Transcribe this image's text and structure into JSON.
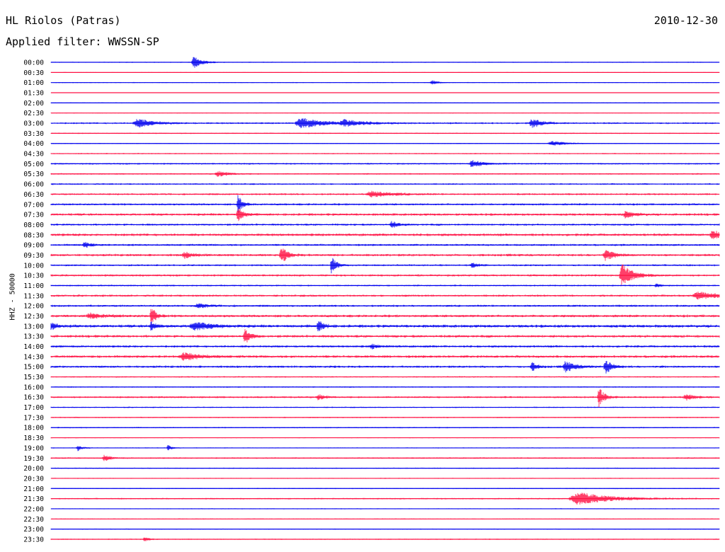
{
  "header": {
    "station": "HL Riolos (Patras)",
    "date": "2010-12-30",
    "filter": "Applied filter: WWSSN-SP"
  },
  "chart_data": {
    "type": "line",
    "title": "HL Riolos (Patras)",
    "subtitle": "Applied filter: WWSSN-SP",
    "date": "2010-12-30",
    "ylabel": "HHZ - 50000",
    "xlabel": "",
    "row_labels": [
      "00:00",
      "00:30",
      "01:00",
      "01:30",
      "02:00",
      "02:30",
      "03:00",
      "03:30",
      "04:00",
      "04:30",
      "05:00",
      "05:30",
      "06:00",
      "06:30",
      "07:00",
      "07:30",
      "08:00",
      "08:30",
      "09:00",
      "09:30",
      "10:00",
      "10:30",
      "11:00",
      "11:30",
      "12:00",
      "12:30",
      "13:00",
      "13:30",
      "14:00",
      "14:30",
      "15:00",
      "15:30",
      "16:00",
      "16:30",
      "17:00",
      "17:30",
      "18:00",
      "18:30",
      "19:00",
      "19:30",
      "20:00",
      "20:30",
      "21:00",
      "21:30",
      "22:00",
      "22:30",
      "23:00",
      "23:30"
    ],
    "row_noise": [
      0.6,
      0.5,
      0.6,
      0.4,
      0.6,
      0.5,
      1.1,
      0.8,
      0.6,
      0.8,
      1.0,
      0.9,
      1.0,
      1.2,
      1.3,
      1.5,
      1.3,
      1.6,
      1.3,
      1.5,
      1.2,
      1.3,
      1.0,
      1.3,
      1.3,
      1.6,
      1.8,
      1.6,
      1.4,
      1.6,
      1.4,
      0.9,
      0.8,
      1.2,
      0.8,
      0.8,
      0.8,
      0.6,
      0.6,
      0.9,
      0.7,
      0.6,
      0.7,
      0.9,
      0.6,
      0.6,
      0.6,
      0.7
    ],
    "events": [
      {
        "row": 0,
        "x": 0.214,
        "amp": 8,
        "dur": 0.008
      },
      {
        "row": 2,
        "x": 0.57,
        "amp": 3,
        "dur": 0.006
      },
      {
        "row": 6,
        "x": 0.13,
        "amp": 6,
        "dur": 0.015
      },
      {
        "row": 6,
        "x": 0.375,
        "amp": 7,
        "dur": 0.02
      },
      {
        "row": 6,
        "x": 0.44,
        "amp": 4,
        "dur": 0.02
      },
      {
        "row": 6,
        "x": 0.72,
        "amp": 6,
        "dur": 0.01
      },
      {
        "row": 8,
        "x": 0.75,
        "amp": 3,
        "dur": 0.015
      },
      {
        "row": 10,
        "x": 0.63,
        "amp": 5,
        "dur": 0.01
      },
      {
        "row": 11,
        "x": 0.25,
        "amp": 4,
        "dur": 0.01
      },
      {
        "row": 13,
        "x": 0.48,
        "amp": 4,
        "dur": 0.02
      },
      {
        "row": 14,
        "x": 0.28,
        "amp": 14,
        "dur": 0.004
      },
      {
        "row": 15,
        "x": 0.28,
        "amp": 10,
        "dur": 0.005
      },
      {
        "row": 15,
        "x": 0.86,
        "amp": 5,
        "dur": 0.008
      },
      {
        "row": 16,
        "x": 0.51,
        "amp": 4,
        "dur": 0.006
      },
      {
        "row": 17,
        "x": 0.99,
        "amp": 6,
        "dur": 0.008
      },
      {
        "row": 18,
        "x": 0.05,
        "amp": 4,
        "dur": 0.006
      },
      {
        "row": 19,
        "x": 0.345,
        "amp": 11,
        "dur": 0.006
      },
      {
        "row": 19,
        "x": 0.83,
        "amp": 7,
        "dur": 0.008
      },
      {
        "row": 19,
        "x": 0.2,
        "amp": 4,
        "dur": 0.008
      },
      {
        "row": 20,
        "x": 0.42,
        "amp": 12,
        "dur": 0.005
      },
      {
        "row": 20,
        "x": 0.63,
        "amp": 3,
        "dur": 0.006
      },
      {
        "row": 21,
        "x": 0.855,
        "amp": 16,
        "dur": 0.01
      },
      {
        "row": 22,
        "x": 0.905,
        "amp": 3,
        "dur": 0.004
      },
      {
        "row": 23,
        "x": 0.97,
        "amp": 5,
        "dur": 0.02
      },
      {
        "row": 24,
        "x": 0.22,
        "amp": 3,
        "dur": 0.01
      },
      {
        "row": 25,
        "x": 0.15,
        "amp": 15,
        "dur": 0.004
      },
      {
        "row": 25,
        "x": 0.06,
        "amp": 3,
        "dur": 0.015
      },
      {
        "row": 26,
        "x": 0.0,
        "amp": 5,
        "dur": 0.005
      },
      {
        "row": 26,
        "x": 0.15,
        "amp": 6,
        "dur": 0.005
      },
      {
        "row": 26,
        "x": 0.215,
        "amp": 6,
        "dur": 0.015
      },
      {
        "row": 26,
        "x": 0.4,
        "amp": 8,
        "dur": 0.005
      },
      {
        "row": 27,
        "x": 0.29,
        "amp": 11,
        "dur": 0.005
      },
      {
        "row": 28,
        "x": 0.48,
        "amp": 3,
        "dur": 0.006
      },
      {
        "row": 29,
        "x": 0.2,
        "amp": 5,
        "dur": 0.015
      },
      {
        "row": 30,
        "x": 0.72,
        "amp": 6,
        "dur": 0.005
      },
      {
        "row": 30,
        "x": 0.77,
        "amp": 7,
        "dur": 0.01
      },
      {
        "row": 30,
        "x": 0.83,
        "amp": 10,
        "dur": 0.006
      },
      {
        "row": 33,
        "x": 0.4,
        "amp": 4,
        "dur": 0.006
      },
      {
        "row": 33,
        "x": 0.82,
        "amp": 14,
        "dur": 0.005
      },
      {
        "row": 33,
        "x": 0.95,
        "amp": 4,
        "dur": 0.008
      },
      {
        "row": 38,
        "x": 0.04,
        "amp": 4,
        "dur": 0.005
      },
      {
        "row": 38,
        "x": 0.175,
        "amp": 4,
        "dur": 0.004
      },
      {
        "row": 39,
        "x": 0.08,
        "amp": 4,
        "dur": 0.006
      },
      {
        "row": 43,
        "x": 0.79,
        "amp": 9,
        "dur": 0.03
      },
      {
        "row": 47,
        "x": 0.14,
        "amp": 3,
        "dur": 0.005
      }
    ],
    "colors": {
      "odd": "#ff1144",
      "even": "#0000ee"
    },
    "grid": false,
    "legend": "none"
  }
}
